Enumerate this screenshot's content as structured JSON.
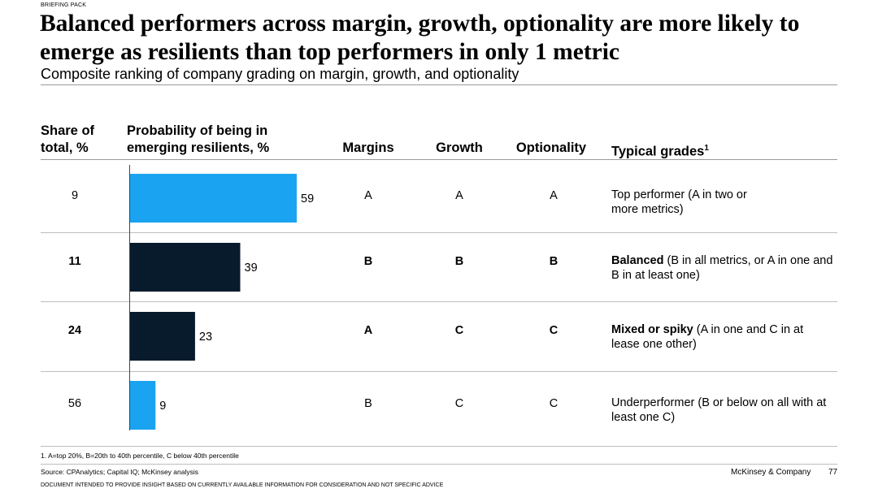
{
  "header": {
    "pack_label": "BRIEFING PACK",
    "title": "Balanced performers across margin, growth, optionality are more likely to emerge as resilients than top performers in only 1 metric",
    "subtitle": "Composite ranking of company grading on margin, growth, and optionality"
  },
  "columns": {
    "share_l1": "Share of",
    "share_l2": "total, %",
    "prob_l1": "Probability of being in",
    "prob_l2": "emerging resilients, %",
    "margins": "Margins",
    "growth": "Growth",
    "optionality": "Optionality",
    "typical": "Typical grades",
    "typical_sup": "1"
  },
  "rows": [
    {
      "share": "9",
      "margin": "A",
      "growth": "A",
      "optionality": "A",
      "typical_bold": "",
      "typical_text": "Top performer (A in two or more metrics)",
      "emphasis": false
    },
    {
      "share": "11",
      "margin": "B",
      "growth": "B",
      "optionality": "B",
      "typical_bold": "Balanced",
      "typical_text": " (B in all metrics, or A in one and B in at least one)",
      "emphasis": true
    },
    {
      "share": "24",
      "margin": "A",
      "growth": "C",
      "optionality": "C",
      "typical_bold": "Mixed or spiky",
      "typical_text": " (A in one and C in at lease one other)",
      "emphasis": true
    },
    {
      "share": "56",
      "margin": "B",
      "growth": "C",
      "optionality": "C",
      "typical_bold": "",
      "typical_text": "Underperformer (B or below on all with at least one C)",
      "emphasis": false
    }
  ],
  "chart_data": {
    "type": "bar",
    "orientation": "horizontal",
    "title": "Probability of being in emerging resilients, %",
    "categories": [
      "Top performer",
      "Balanced",
      "Mixed or spiky",
      "Underperformer"
    ],
    "values": [
      59,
      39,
      23,
      9
    ],
    "colors": [
      "#1aa3f0",
      "#071b2c",
      "#071b2c",
      "#1aa3f0"
    ],
    "xlim": [
      0,
      59
    ]
  },
  "footer": {
    "footnote": "1. A=top 20%, B=20th to 40th percentile, C below 40th percentile",
    "source": "Source: CPAnalytics; Capital IQ; McKinsey analysis",
    "brand": "McKinsey & Company",
    "page": "77",
    "disclaimer": "DOCUMENT INTENDED TO PROVIDE INSIGHT BASED ON CURRENTLY AVAILABLE INFORMATION FOR CONSIDERATION AND NOT SPECIFIC ADVICE"
  }
}
